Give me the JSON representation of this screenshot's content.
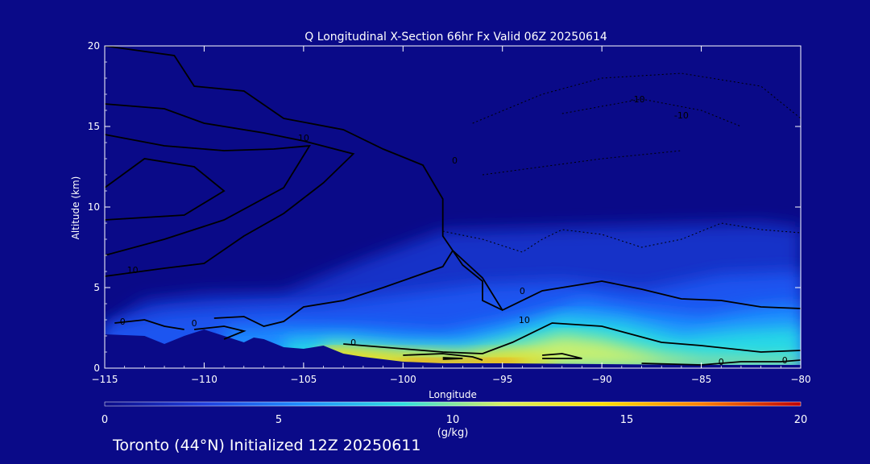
{
  "chart_data": {
    "type": "heatmap",
    "title": "Q Longitudinal X-Section 66hr  Fx Valid 06Z 20250614",
    "xlabel": "Longitude",
    "ylabel": "Altitude (km)",
    "xlim": [
      -115,
      -80
    ],
    "ylim": [
      0,
      20
    ],
    "x_ticks": [
      -115,
      -110,
      -105,
      -100,
      -95,
      -90,
      -85,
      -80
    ],
    "x_tick_labels": [
      "−115",
      "−110",
      "−105",
      "−100",
      "−95",
      "−90",
      "−85",
      "−80"
    ],
    "y_ticks": [
      0,
      5,
      10,
      15,
      20
    ],
    "y_tick_labels": [
      "0",
      "5",
      "10",
      "15",
      "20"
    ],
    "colorbar": {
      "label": "(g/kg)",
      "min": 0,
      "max": 20,
      "ticks": [
        0,
        5,
        10,
        15,
        20
      ],
      "tick_labels": [
        "0",
        "5",
        "10",
        "15",
        "20"
      ],
      "colors": [
        "#0a0a88",
        "#1f3fe0",
        "#1f8fff",
        "#2fe0e0",
        "#d8f060",
        "#ffe000",
        "#ff8000",
        "#c00000"
      ]
    },
    "terrain_profile": {
      "lon": [
        -115,
        -113,
        -112,
        -111,
        -110,
        -109,
        -108,
        -107.5,
        -107,
        -106,
        -105,
        -104,
        -103,
        -102,
        -101,
        -100,
        -99,
        -98,
        -97,
        -95,
        -90,
        -85,
        -80
      ],
      "alt": [
        2.1,
        2.0,
        1.5,
        2.0,
        2.4,
        2.0,
        1.6,
        1.9,
        1.8,
        1.3,
        1.2,
        1.4,
        0.9,
        0.7,
        0.55,
        0.4,
        0.35,
        0.3,
        0.3,
        0.3,
        0.25,
        0.2,
        0.2
      ]
    },
    "contour_labels": [
      {
        "text": "10",
        "lon": -105,
        "alt": 14.1
      },
      {
        "text": "0",
        "lon": -97.4,
        "alt": 12.7
      },
      {
        "text": "10",
        "lon": -113.6,
        "alt": 5.9
      },
      {
        "text": "0",
        "lon": -114.1,
        "alt": 2.7
      },
      {
        "text": "0",
        "lon": -110.5,
        "alt": 2.6
      },
      {
        "text": "0",
        "lon": -102.5,
        "alt": 1.4
      },
      {
        "text": "0",
        "lon": -94.0,
        "alt": 4.6
      },
      {
        "text": "10",
        "lon": -93.9,
        "alt": 2.8
      },
      {
        "text": "-10",
        "lon": -88.2,
        "alt": 16.5
      },
      {
        "text": "-10",
        "lon": -86.0,
        "alt": 15.5
      },
      {
        "text": "0",
        "lon": -84.0,
        "alt": 0.2
      },
      {
        "text": "0",
        "lon": -80.8,
        "alt": 0.3
      }
    ]
  },
  "footer": {
    "text": "Toronto (44°N) Initialized 12Z 20250611"
  }
}
